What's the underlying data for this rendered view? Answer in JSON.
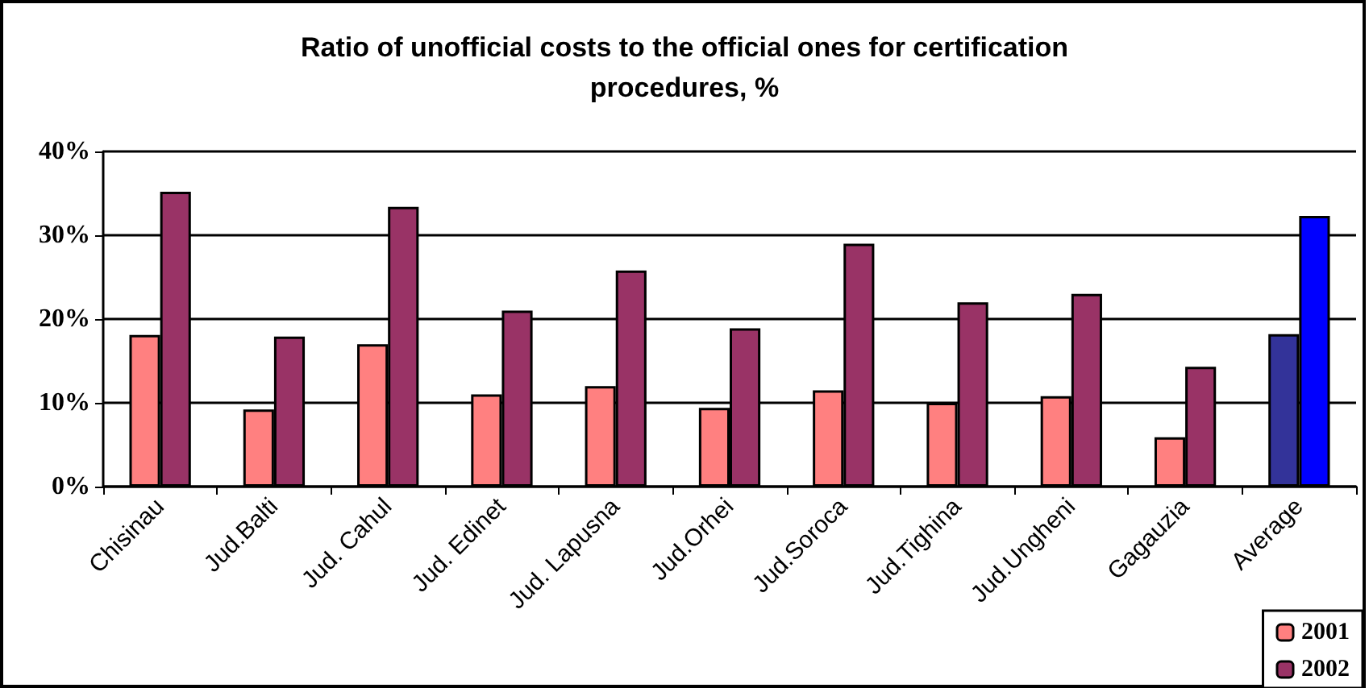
{
  "chart_data": {
    "type": "bar",
    "title": "Ratio of unofficial costs to the official ones for certification\nprocedures, %",
    "categories": [
      "Chisinau",
      "Jud.Balti",
      "Jud. Cahul",
      "Jud. Edinet",
      "Jud. Lapusna",
      "Jud.Orhei",
      "Jud.Soroca",
      "Jud.Tighina",
      "Jud.Ungheni",
      "Gagauzia",
      "Average"
    ],
    "series": [
      {
        "name": "2001",
        "color": "#ff8080",
        "colors": [
          "#ff8080",
          "#ff8080",
          "#ff8080",
          "#ff8080",
          "#ff8080",
          "#ff8080",
          "#ff8080",
          "#ff8080",
          "#ff8080",
          "#ff8080",
          "#333399"
        ],
        "values": [
          18.1,
          9.2,
          17.0,
          11.0,
          12.0,
          9.4,
          11.5,
          10.0,
          10.8,
          5.9,
          18.2
        ]
      },
      {
        "name": "2002",
        "color": "#993366",
        "colors": [
          "#993366",
          "#993366",
          "#993366",
          "#993366",
          "#993366",
          "#993366",
          "#993366",
          "#993366",
          "#993366",
          "#993366",
          "#0000ff"
        ],
        "values": [
          35.2,
          17.9,
          33.4,
          21.0,
          25.8,
          18.9,
          29.0,
          22.0,
          23.0,
          14.3,
          32.3
        ]
      }
    ],
    "ylim": [
      0,
      40
    ],
    "yticks": [
      {
        "value": 0,
        "label": "0%"
      },
      {
        "value": 10,
        "label": "10%"
      },
      {
        "value": 20,
        "label": "20%"
      },
      {
        "value": 30,
        "label": "30%"
      },
      {
        "value": 40,
        "label": "40%"
      }
    ],
    "grid": "y",
    "legend": "bottom right"
  }
}
